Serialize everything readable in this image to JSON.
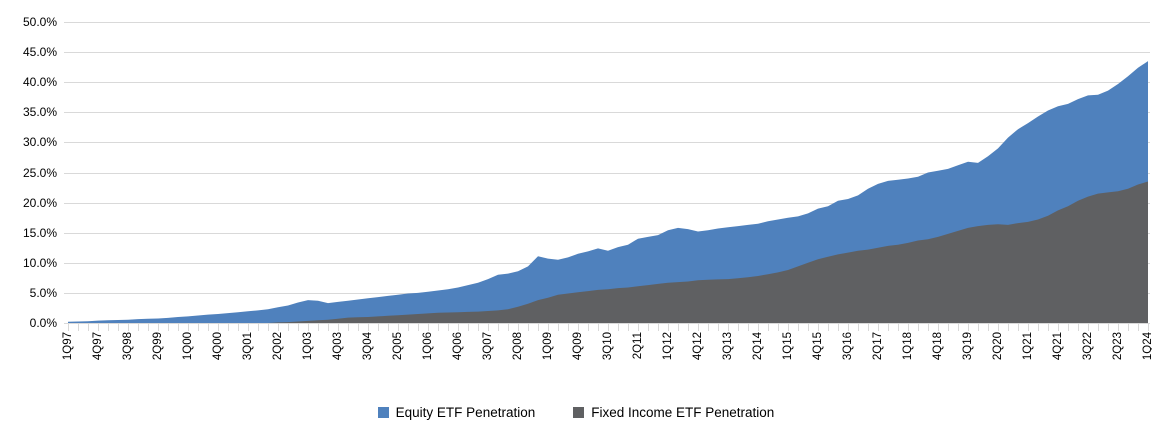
{
  "chart_data": {
    "type": "area",
    "stacked": false,
    "x": [
      "1Q97",
      "2Q97",
      "3Q97",
      "4Q97",
      "1Q98",
      "2Q98",
      "3Q98",
      "4Q98",
      "1Q99",
      "2Q99",
      "3Q99",
      "4Q99",
      "1Q00",
      "2Q00",
      "3Q00",
      "4Q00",
      "1Q01",
      "2Q01",
      "3Q01",
      "4Q01",
      "1Q02",
      "2Q02",
      "3Q02",
      "4Q02",
      "1Q03",
      "2Q03",
      "3Q03",
      "4Q03",
      "1Q04",
      "2Q04",
      "3Q04",
      "4Q04",
      "1Q05",
      "2Q05",
      "3Q05",
      "4Q05",
      "1Q06",
      "2Q06",
      "3Q06",
      "4Q06",
      "1Q07",
      "2Q07",
      "3Q07",
      "4Q07",
      "1Q08",
      "2Q08",
      "3Q08",
      "4Q08",
      "1Q09",
      "2Q09",
      "3Q09",
      "4Q09",
      "1Q10",
      "2Q10",
      "3Q10",
      "4Q10",
      "1Q11",
      "2Q11",
      "3Q11",
      "4Q11",
      "1Q12",
      "2Q12",
      "3Q12",
      "4Q12",
      "1Q13",
      "2Q13",
      "3Q13",
      "4Q13",
      "1Q14",
      "2Q14",
      "3Q14",
      "4Q14",
      "1Q15",
      "2Q15",
      "3Q15",
      "4Q15",
      "1Q16",
      "2Q16",
      "3Q16",
      "4Q16",
      "1Q17",
      "2Q17",
      "3Q17",
      "4Q17",
      "1Q18",
      "2Q18",
      "3Q18",
      "4Q18",
      "1Q19",
      "2Q19",
      "3Q19",
      "4Q19",
      "1Q20",
      "2Q20",
      "3Q20",
      "4Q20",
      "1Q21",
      "2Q21",
      "3Q21",
      "4Q21",
      "1Q22",
      "2Q22",
      "3Q22",
      "4Q22",
      "1Q23",
      "2Q23",
      "3Q23",
      "4Q23",
      "1Q24"
    ],
    "x_tick_step": 3,
    "series": [
      {
        "name": "Equity ETF Penetration",
        "color": "#4F81BD",
        "values": [
          0.2,
          0.25,
          0.3,
          0.4,
          0.45,
          0.5,
          0.55,
          0.65,
          0.7,
          0.75,
          0.85,
          1.0,
          1.1,
          1.25,
          1.4,
          1.5,
          1.65,
          1.8,
          1.95,
          2.1,
          2.3,
          2.6,
          2.9,
          3.4,
          3.8,
          3.7,
          3.3,
          3.5,
          3.7,
          3.9,
          4.1,
          4.3,
          4.5,
          4.7,
          4.9,
          5.0,
          5.2,
          5.4,
          5.6,
          5.9,
          6.3,
          6.7,
          7.3,
          8.0,
          8.2,
          8.6,
          9.4,
          11.1,
          10.7,
          10.5,
          10.9,
          11.5,
          11.9,
          12.4,
          12.0,
          12.6,
          13.0,
          14.0,
          14.3,
          14.6,
          15.4,
          15.8,
          15.6,
          15.2,
          15.4,
          15.7,
          15.9,
          16.1,
          16.3,
          16.5,
          16.9,
          17.2,
          17.5,
          17.7,
          18.2,
          19.0,
          19.4,
          20.3,
          20.6,
          21.2,
          22.3,
          23.1,
          23.6,
          23.8,
          24.0,
          24.3,
          25.0,
          25.3,
          25.6,
          26.2,
          26.8,
          26.6,
          27.7,
          29.0,
          30.8,
          32.2,
          33.2,
          34.3,
          35.3,
          36.0,
          36.4,
          37.2,
          37.8,
          37.9,
          38.6,
          39.7,
          41.0,
          42.4,
          43.5
        ]
      },
      {
        "name": "Fixed Income ETF Penetration",
        "color": "#5F6062",
        "values": [
          0,
          0,
          0,
          0,
          0,
          0,
          0,
          0,
          0,
          0,
          0,
          0,
          0,
          0,
          0,
          0,
          0,
          0,
          0,
          0,
          0,
          0.1,
          0.15,
          0.25,
          0.35,
          0.45,
          0.55,
          0.7,
          0.9,
          0.95,
          1.0,
          1.1,
          1.2,
          1.3,
          1.4,
          1.5,
          1.6,
          1.7,
          1.75,
          1.8,
          1.85,
          1.9,
          2.0,
          2.1,
          2.3,
          2.7,
          3.2,
          3.8,
          4.2,
          4.7,
          4.9,
          5.1,
          5.3,
          5.5,
          5.6,
          5.8,
          5.9,
          6.1,
          6.3,
          6.5,
          6.7,
          6.8,
          6.9,
          7.1,
          7.2,
          7.25,
          7.3,
          7.45,
          7.6,
          7.8,
          8.1,
          8.4,
          8.8,
          9.4,
          10.0,
          10.6,
          11.0,
          11.4,
          11.7,
          12.0,
          12.2,
          12.5,
          12.8,
          13.0,
          13.3,
          13.7,
          13.9,
          14.3,
          14.8,
          15.3,
          15.8,
          16.1,
          16.3,
          16.4,
          16.3,
          16.6,
          16.8,
          17.2,
          17.8,
          18.7,
          19.4,
          20.3,
          21.0,
          21.5,
          21.7,
          21.9,
          22.3,
          23.0,
          23.5
        ]
      }
    ],
    "ylim": [
      0,
      50
    ],
    "y_tick_labels": [
      "0.0%",
      "5.0%",
      "10.0%",
      "15.0%",
      "20.0%",
      "25.0%",
      "30.0%",
      "35.0%",
      "40.0%",
      "45.0%",
      "50.0%"
    ],
    "grid": "horizontal",
    "legend_position": "bottom"
  },
  "colors": {
    "equity": "#4F81BD",
    "fixed_income": "#5F6062",
    "gridline": "#D9D9D9",
    "axis": "#D9D9D9",
    "tick": "#D9D9D9",
    "label_text": "#000000",
    "background": "#FFFFFF"
  }
}
